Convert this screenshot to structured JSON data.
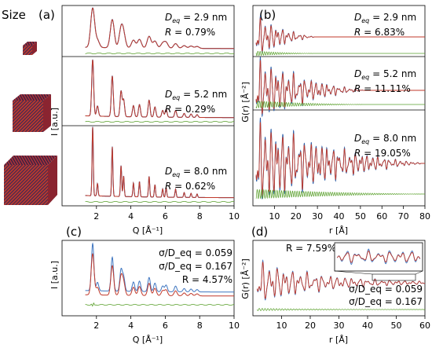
{
  "figure": {
    "size_label": "Size",
    "i_unit_label": "I [a.u.]",
    "g_unit_label": "G(r) [Å⁻²]"
  },
  "colors": {
    "data": "#2b5fa8",
    "fit": "#c0392b",
    "diff": "#5aa02c",
    "narrow": "#3f76c0",
    "wide": "#c0392b"
  },
  "chart_data": [
    {
      "panel": "(a)",
      "type": "line",
      "xlabel": "Q [Å⁻¹]",
      "ylabel": "I [a.u.]",
      "xlim": [
        0,
        10
      ],
      "xticks": [
        2,
        4,
        6,
        8,
        10
      ],
      "peaks_Q": [
        1.78,
        2.06,
        2.92,
        3.43,
        3.58,
        4.15,
        4.5,
        5.06,
        5.4,
        5.85,
        6.05,
        6.6,
        7.1,
        7.5,
        7.85
      ],
      "series": [
        {
          "D_eq": "2.9 nm",
          "R": "0.79%"
        },
        {
          "D_eq": "5.2 nm",
          "R": "0.29%"
        },
        {
          "D_eq": "8.0 nm",
          "R": "0.62%"
        }
      ]
    },
    {
      "panel": "(b)",
      "type": "line",
      "xlabel": "r [Å]",
      "ylabel": "G(r) [Å⁻²]",
      "xlim": [
        0,
        80
      ],
      "xticks": [
        10,
        20,
        30,
        40,
        50,
        60,
        70,
        80
      ],
      "series": [
        {
          "D_eq": "2.9 nm",
          "R": "6.83%",
          "extent_r": 29
        },
        {
          "D_eq": "5.2 nm",
          "R": "11.11%",
          "extent_r": 52
        },
        {
          "D_eq": "8.0 nm",
          "R": "19.05%",
          "extent_r": 80
        }
      ]
    },
    {
      "panel": "(c)",
      "type": "line",
      "xlabel": "Q [Å⁻¹]",
      "ylabel": "I [a.u.]",
      "xlim": [
        0,
        10
      ],
      "xticks": [
        2,
        4,
        6,
        8,
        10
      ],
      "R": "R = 4.57%",
      "series": [
        {
          "name": "σ/D_eq = 0.059",
          "color_key": "narrow"
        },
        {
          "name": "σ/D_eq = 0.167",
          "color_key": "wide"
        }
      ]
    },
    {
      "panel": "(d)",
      "type": "line",
      "xlabel": "r [Å]",
      "ylabel": "G(r) [Å⁻²]",
      "xlim": [
        0,
        60
      ],
      "xticks": [
        10,
        20,
        30,
        40,
        50,
        60
      ],
      "R": "R = 7.59%",
      "inset_r_range": [
        35,
        55
      ],
      "series": [
        {
          "name": "σ/D_eq = 0.059",
          "color_key": "narrow"
        },
        {
          "name": "σ/D_eq = 0.167",
          "color_key": "wide"
        }
      ]
    }
  ]
}
